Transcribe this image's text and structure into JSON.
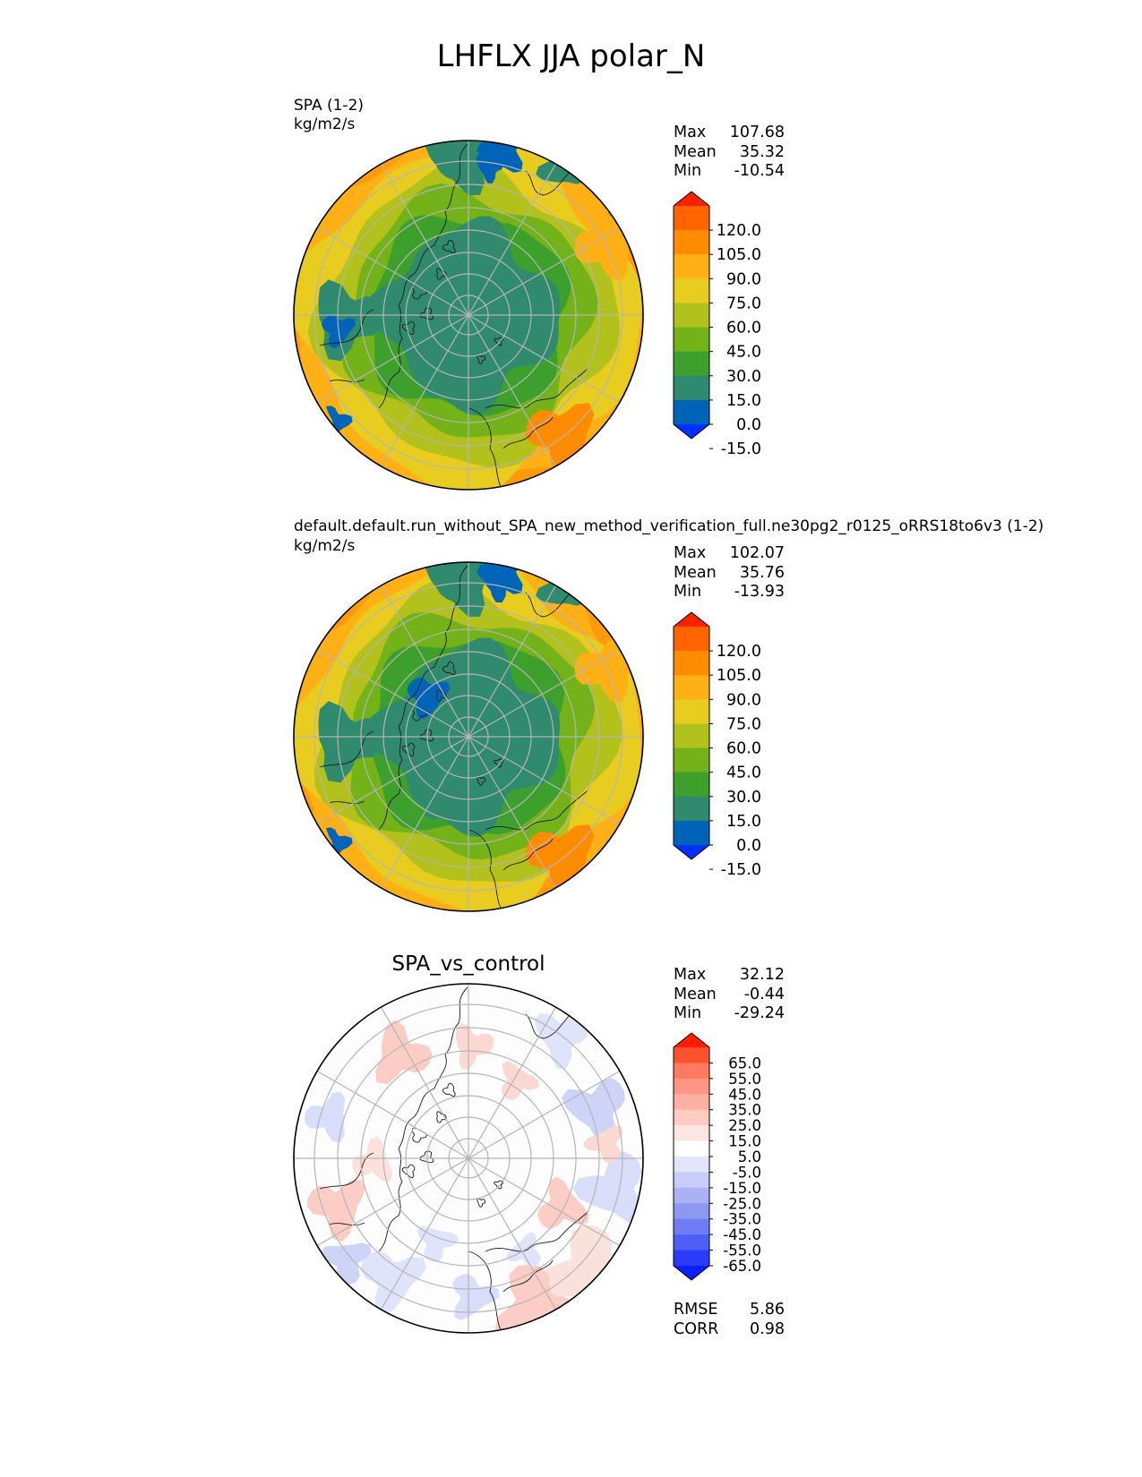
{
  "title": "LHFLX JJA polar_N",
  "panels": [
    {
      "title": "SPA (1-2)",
      "units": "kg/m2/s",
      "stats": {
        "Max": "107.68",
        "Mean": "35.32",
        "Min": "-10.54"
      }
    },
    {
      "title": "default.default.run_without_SPA_new_method_verification_full.ne30pg2_r0125_oRRS18to6v3 (1-2)",
      "units": "kg/m2/s",
      "stats": {
        "Max": "102.07",
        "Mean": "35.76",
        "Min": "-13.93"
      }
    },
    {
      "title": "SPA_vs_control",
      "stats": {
        "Max": "32.12",
        "Mean": "-0.44",
        "Min": "-29.24"
      },
      "metrics": {
        "RMSE": "5.86",
        "CORR": "0.98"
      }
    }
  ],
  "stat_labels": {
    "max": "Max",
    "mean": "Mean",
    "min": "Min",
    "rmse": "RMSE",
    "corr": "CORR"
  },
  "colorbar_main": {
    "ticks": [
      "120.0",
      "105.0",
      "90.0",
      "75.0",
      "60.0",
      "45.0",
      "30.0",
      "15.0",
      "0.0",
      "-15.0"
    ],
    "colors": [
      "#ff2200",
      "#ff6400",
      "#ff8c00",
      "#ffb014",
      "#e8cc20",
      "#b2c11c",
      "#74b21a",
      "#3ea02c",
      "#2f8a6e",
      "#0065b8",
      "#0030ff"
    ]
  },
  "colorbar_diff": {
    "ticks": [
      "65.0",
      "55.0",
      "45.0",
      "35.0",
      "25.0",
      "15.0",
      "5.0",
      "-5.0",
      "-15.0",
      "-25.0",
      "-35.0",
      "-45.0",
      "-55.0",
      "-65.0"
    ],
    "colors": [
      "#ff1f00",
      "#ff5030",
      "#ff7a5e",
      "#ff9585",
      "#ffb0a4",
      "#ffcbc2",
      "#fbe6e2",
      "#ffffff",
      "#e3e6fb",
      "#c7cdf8",
      "#aab2f4",
      "#8d98f2",
      "#6f7cf2",
      "#4d5ff5",
      "#2a3cfa",
      "#0a20ff"
    ]
  },
  "chart_data": [
    {
      "type": "heatmap",
      "title": "SPA (1-2)",
      "units": "kg/m2/s",
      "projection": "polar_N",
      "season": "JJA",
      "variable": "LHFLX",
      "max": 107.68,
      "mean": 35.32,
      "min": -10.54,
      "levels": [
        -15,
        0,
        15,
        30,
        45,
        60,
        75,
        90,
        105,
        120
      ]
    },
    {
      "type": "heatmap",
      "title": "default.default.run_without_SPA_new_method_verification_full.ne30pg2_r0125_oRRS18to6v3 (1-2)",
      "units": "kg/m2/s",
      "projection": "polar_N",
      "max": 102.07,
      "mean": 35.76,
      "min": -13.93,
      "levels": [
        -15,
        0,
        15,
        30,
        45,
        60,
        75,
        90,
        105,
        120
      ]
    },
    {
      "type": "heatmap",
      "title": "SPA_vs_control",
      "projection": "polar_N",
      "max": 32.12,
      "mean": -0.44,
      "min": -29.24,
      "rmse": 5.86,
      "corr": 0.98,
      "levels": [
        -65,
        -55,
        -45,
        -35,
        -25,
        -15,
        -5,
        5,
        15,
        25,
        35,
        45,
        55,
        65
      ]
    }
  ]
}
